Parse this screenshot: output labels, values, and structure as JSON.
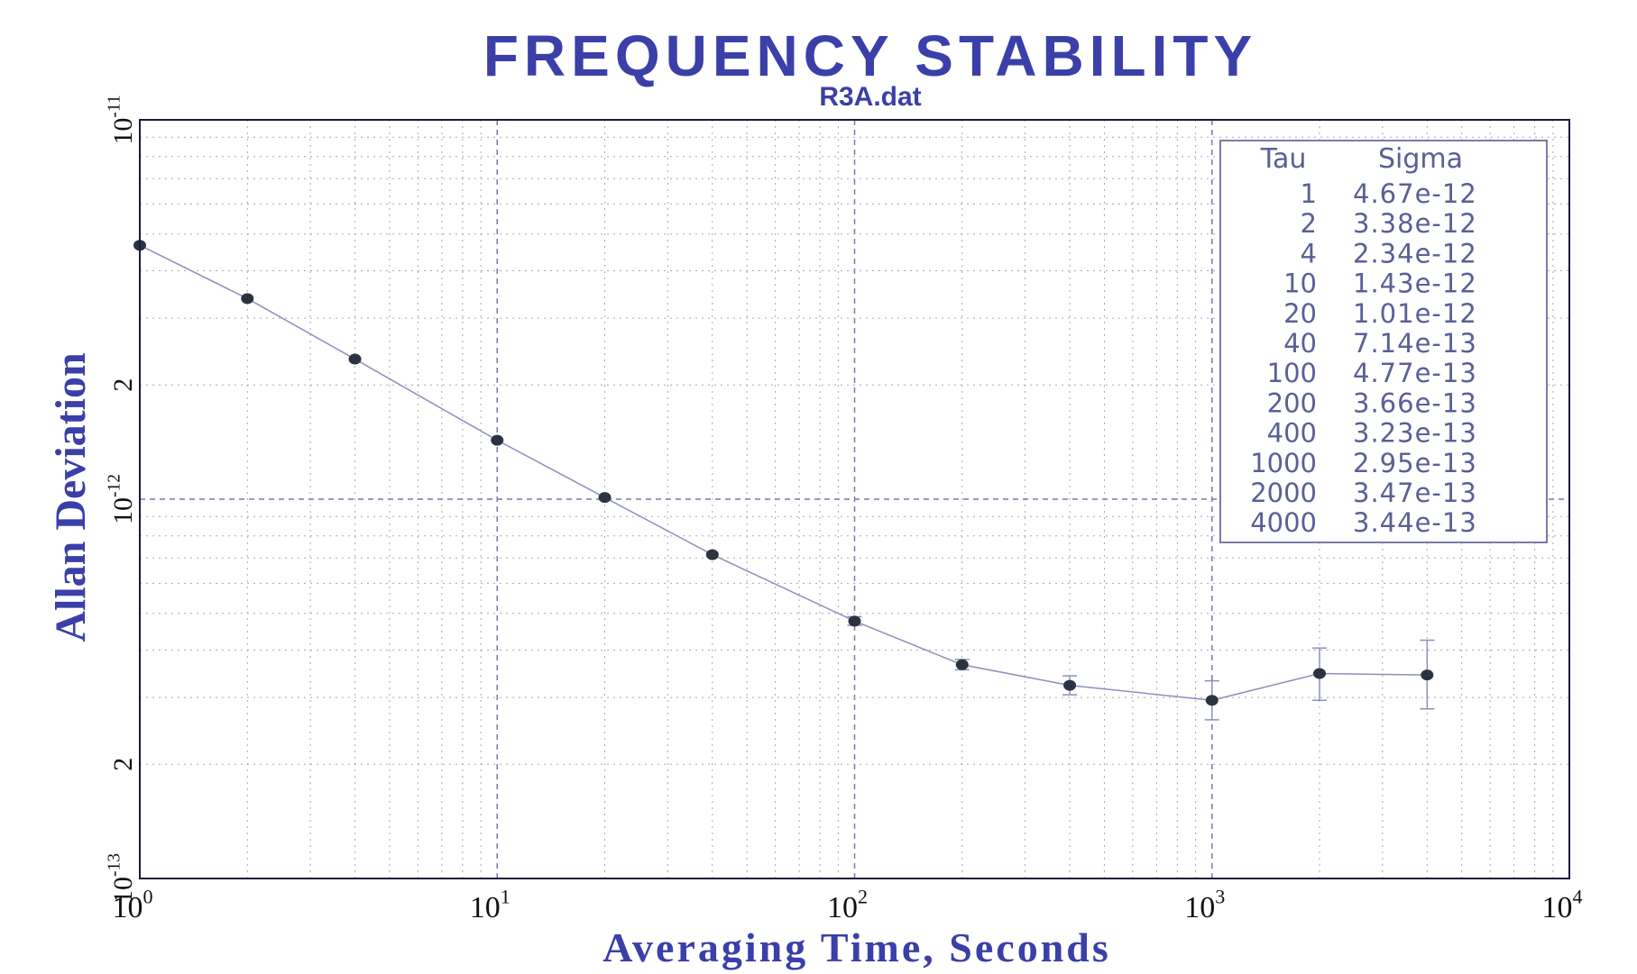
{
  "chart_data": {
    "type": "scatter",
    "title": "FREQUENCY STABILITY",
    "subtitle": "R3A.dat",
    "xlabel": "Averaging Time, Seconds",
    "ylabel": "Allan Deviation",
    "x_scale": "log",
    "y_scale": "log",
    "xlim": [
      1,
      10000
    ],
    "ylim": [
      1e-13,
      1e-11
    ],
    "x_ticks": [
      {
        "value": 1,
        "base": "10",
        "exp": "0"
      },
      {
        "value": 10,
        "base": "10",
        "exp": "1"
      },
      {
        "value": 100,
        "base": "10",
        "exp": "2"
      },
      {
        "value": 1000,
        "base": "10",
        "exp": "3"
      },
      {
        "value": 10000,
        "base": "10",
        "exp": "4"
      }
    ],
    "y_ticks": [
      {
        "value": 1e-11,
        "base": "10",
        "exp": "-11"
      },
      {
        "value": 2e-12,
        "label": "2"
      },
      {
        "value": 1e-12,
        "base": "10",
        "exp": "-12"
      },
      {
        "value": 2e-13,
        "label": "2"
      },
      {
        "value": 1e-13,
        "base": "10",
        "exp": "-13"
      }
    ],
    "grid": true,
    "legend_position": "top-right",
    "legend_headers": [
      "Tau",
      "Sigma"
    ],
    "table_labels": [
      {
        "tau": "1",
        "sigma": "4.67e-12"
      },
      {
        "tau": "2",
        "sigma": "3.38e-12"
      },
      {
        "tau": "4",
        "sigma": "2.34e-12"
      },
      {
        "tau": "10",
        "sigma": "1.43e-12"
      },
      {
        "tau": "20",
        "sigma": "1.01e-12"
      },
      {
        "tau": "40",
        "sigma": "7.14e-13"
      },
      {
        "tau": "100",
        "sigma": "4.77e-13"
      },
      {
        "tau": "200",
        "sigma": "3.66e-13"
      },
      {
        "tau": "400",
        "sigma": "3.23e-13"
      },
      {
        "tau": "1000",
        "sigma": "2.95e-13"
      },
      {
        "tau": "2000",
        "sigma": "3.47e-13"
      },
      {
        "tau": "4000",
        "sigma": "3.44e-13"
      }
    ],
    "series": [
      {
        "x": [
          1,
          2,
          4,
          10,
          20,
          40,
          100,
          200,
          400,
          1000,
          2000,
          4000
        ],
        "y": [
          4.67e-12,
          3.38e-12,
          2.34e-12,
          1.43e-12,
          1.01e-12,
          7.14e-13,
          4.77e-13,
          3.66e-13,
          3.23e-13,
          2.95e-13,
          3.47e-13,
          3.44e-13
        ],
        "error_low": [
          null,
          null,
          null,
          null,
          null,
          null,
          4.65e-13,
          3.55e-13,
          3.05e-13,
          2.62e-13,
          2.95e-13,
          2.8e-13
        ],
        "error_high": [
          null,
          null,
          null,
          null,
          null,
          null,
          4.9e-13,
          3.78e-13,
          3.42e-13,
          3.32e-13,
          4.05e-13,
          4.25e-13
        ]
      }
    ]
  },
  "colors": {
    "title": "#3b3fa8",
    "axis_label": "#3b3fa8",
    "frame": "#1a1a40",
    "line": "#8a8fbf",
    "marker": "#2b3340",
    "grid": "#a8a8a8",
    "major_grid": "#7a7aa8",
    "legend_text": "#5a5f96",
    "tick_text": "#111111"
  }
}
